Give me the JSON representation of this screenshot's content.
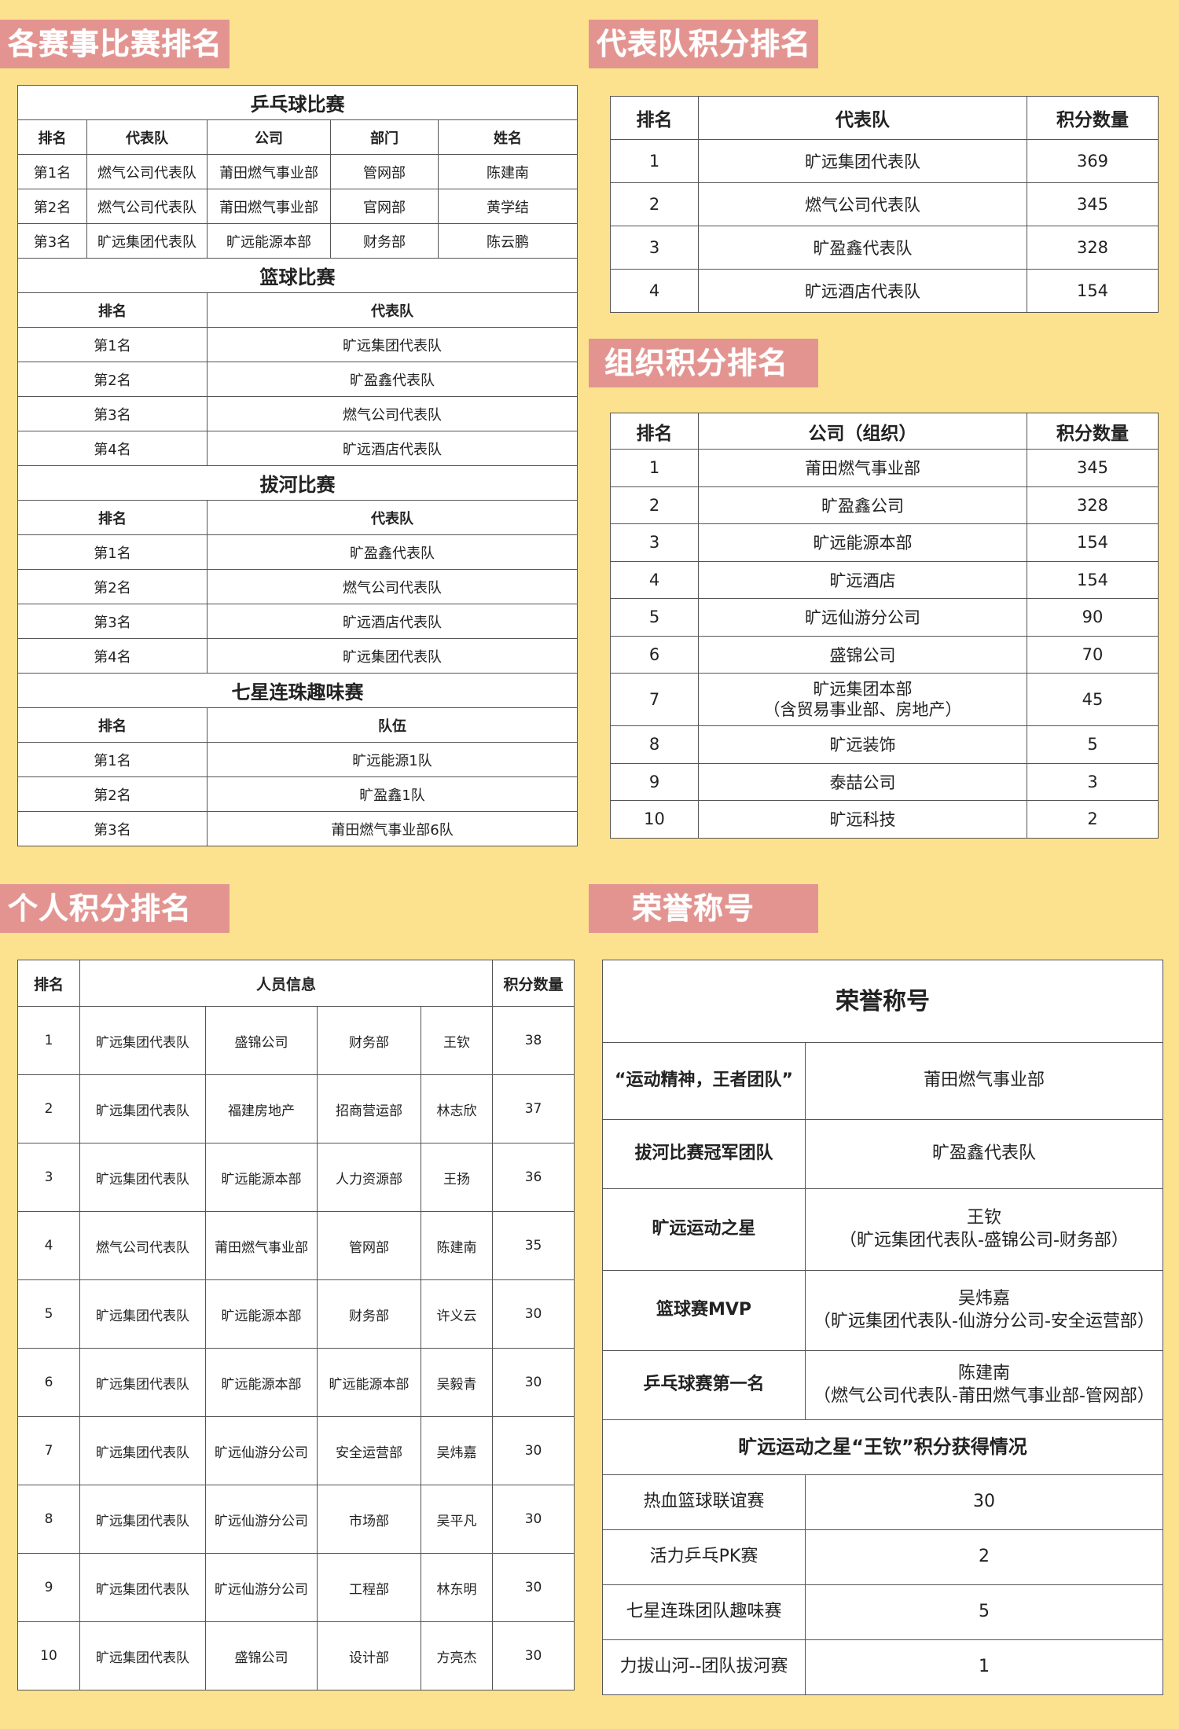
{
  "colors": {
    "background": "#fce28f",
    "section_header": "#e39490",
    "section_header_text": "#ffffff"
  },
  "events": {
    "heading": "各赛事比赛排名",
    "tables": [
      {
        "title": "乒乓球比赛",
        "headers": [
          "排名",
          "代表队",
          "公司",
          "部门",
          "姓名"
        ],
        "rows": [
          [
            "第1名",
            "燃气公司代表队",
            "莆田燃气事业部",
            "管网部",
            "陈建南"
          ],
          [
            "第2名",
            "燃气公司代表队",
            "莆田燃气事业部",
            "官网部",
            "黄学结"
          ],
          [
            "第3名",
            "旷远集团代表队",
            "旷远能源本部",
            "财务部",
            "陈云鹏"
          ]
        ]
      },
      {
        "title": "篮球比赛",
        "headers": [
          "排名",
          "代表队"
        ],
        "rows": [
          [
            "第1名",
            "旷远集团代表队"
          ],
          [
            "第2名",
            "旷盈鑫代表队"
          ],
          [
            "第3名",
            "燃气公司代表队"
          ],
          [
            "第4名",
            "旷远酒店代表队"
          ]
        ]
      },
      {
        "title": "拔河比赛",
        "headers": [
          "排名",
          "代表队"
        ],
        "rows": [
          [
            "第1名",
            "旷盈鑫代表队"
          ],
          [
            "第2名",
            "燃气公司代表队"
          ],
          [
            "第3名",
            "旷远酒店代表队"
          ],
          [
            "第4名",
            "旷远集团代表队"
          ]
        ]
      },
      {
        "title": "七星连珠趣味赛",
        "headers": [
          "排名",
          "队伍"
        ],
        "rows": [
          [
            "第1名",
            "旷远能源1队"
          ],
          [
            "第2名",
            "旷盈鑫1队"
          ],
          [
            "第3名",
            "莆田燃气事业部6队"
          ]
        ]
      }
    ]
  },
  "teams": {
    "heading": "代表队积分排名",
    "headers": [
      "排名",
      "代表队",
      "积分数量"
    ],
    "rows": [
      [
        "1",
        "旷远集团代表队",
        "369"
      ],
      [
        "2",
        "燃气公司代表队",
        "345"
      ],
      [
        "3",
        "旷盈鑫代表队",
        "328"
      ],
      [
        "4",
        "旷远酒店代表队",
        "154"
      ]
    ]
  },
  "orgs": {
    "heading": "组织积分排名",
    "headers": [
      "排名",
      "公司（组织）",
      "积分数量"
    ],
    "rows": [
      [
        "1",
        "莆田燃气事业部",
        "345"
      ],
      [
        "2",
        "旷盈鑫公司",
        "328"
      ],
      [
        "3",
        "旷远能源本部",
        "154"
      ],
      [
        "4",
        "旷远酒店",
        "154"
      ],
      [
        "5",
        "旷远仙游分公司",
        "90"
      ],
      [
        "6",
        "盛锦公司",
        "70"
      ],
      [
        "7",
        "旷远集团本部\n（含贸易事业部、房地产）",
        "45"
      ],
      [
        "8",
        "旷远装饰",
        "5"
      ],
      [
        "9",
        "泰喆公司",
        "3"
      ],
      [
        "10",
        "旷远科技",
        "2"
      ]
    ]
  },
  "persons": {
    "heading": "个人积分排名",
    "headers": [
      "排名",
      "人员信息",
      "积分数量"
    ],
    "rows": [
      [
        "1",
        "旷远集团代表队",
        "盛锦公司",
        "财务部",
        "王钦",
        "38"
      ],
      [
        "2",
        "旷远集团代表队",
        "福建房地产",
        "招商营运部",
        "林志欣",
        "37"
      ],
      [
        "3",
        "旷远集团代表队",
        "旷远能源本部",
        "人力资源部",
        "王扬",
        "36"
      ],
      [
        "4",
        "燃气公司代表队",
        "莆田燃气事业部",
        "管网部",
        "陈建南",
        "35"
      ],
      [
        "5",
        "旷远集团代表队",
        "旷远能源本部",
        "财务部",
        "许义云",
        "30"
      ],
      [
        "6",
        "旷远集团代表队",
        "旷远能源本部",
        "旷远能源本部",
        "吴毅青",
        "30"
      ],
      [
        "7",
        "旷远集团代表队",
        "旷远仙游分公司",
        "安全运营部",
        "吴炜嘉",
        "30"
      ],
      [
        "8",
        "旷远集团代表队",
        "旷远仙游分公司",
        "市场部",
        "吴平凡",
        "30"
      ],
      [
        "9",
        "旷远集团代表队",
        "旷远仙游分公司",
        "工程部",
        "林东明",
        "30"
      ],
      [
        "10",
        "旷远集团代表队",
        "盛锦公司",
        "设计部",
        "方亮杰",
        "30"
      ]
    ]
  },
  "honors": {
    "heading": "荣誉称号",
    "title": "荣誉称号",
    "rows": [
      [
        "“运动精神，王者团队”",
        "莆田燃气事业部"
      ],
      [
        "拔河比赛冠军团队",
        "旷盈鑫代表队"
      ],
      [
        "旷远运动之星",
        "王钦\n（旷远集团代表队-盛锦公司-财务部）"
      ],
      [
        "篮球赛MVP",
        "吴炜嘉\n（旷远集团代表队-仙游分公司-安全运营部）"
      ],
      [
        "乒乓球赛第一名",
        "陈建南\n（燃气公司代表队-莆田燃气事业部-管网部）"
      ]
    ],
    "points_title": "旷远运动之星“王钦”积分获得情况",
    "points": [
      [
        "热血篮球联谊赛",
        "30"
      ],
      [
        "活力乒乓PK赛",
        "2"
      ],
      [
        "七星连珠团队趣味赛",
        "5"
      ],
      [
        "力拔山河--团队拔河赛",
        "1"
      ]
    ]
  }
}
